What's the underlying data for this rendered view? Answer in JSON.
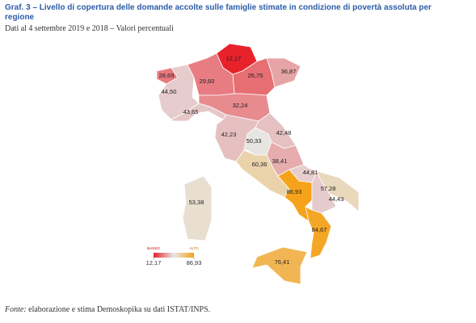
{
  "chart_data": {
    "type": "choropleth",
    "title": "Graf. 3 – Livello di copertura delle domande accolte sulle famiglie stimate in condizione di povertà assoluta per regione",
    "subtitle": "Dati al 4 settembre 2019 e 2018 – Valori percentuali",
    "values": [
      12.17,
      26.75,
      36.87,
      28.69,
      29.6,
      44.5,
      43.65,
      32.24,
      42.23,
      42.48,
      50.33,
      60.36,
      38.41,
      44.81,
      86.93,
      57.28,
      44.43,
      84.67,
      76.41,
      53.38
    ],
    "value_labels": [
      "12,17",
      "26,75",
      "36,87",
      "28,69",
      "29,60",
      "44,50",
      "43,65",
      "32,24",
      "42,23",
      "42,48",
      "50,33",
      "60,36",
      "38,41",
      "44,81",
      "86,93",
      "57,28",
      "44,43",
      "84,67",
      "76,41",
      "53,38"
    ],
    "colorscale": [
      "#e8222a",
      "#e6e6e6",
      "#f5a31a"
    ],
    "legend": {
      "low": "BASSO",
      "high": "ALTO",
      "range": [
        {
          "value": 12.17,
          "label": "12,17"
        },
        {
          "value": 86.93,
          "label": "86,93"
        }
      ]
    },
    "source_label": "Fonte:",
    "source": "elaborazione e stima Demoskopika su dati ISTAT/INPS."
  }
}
